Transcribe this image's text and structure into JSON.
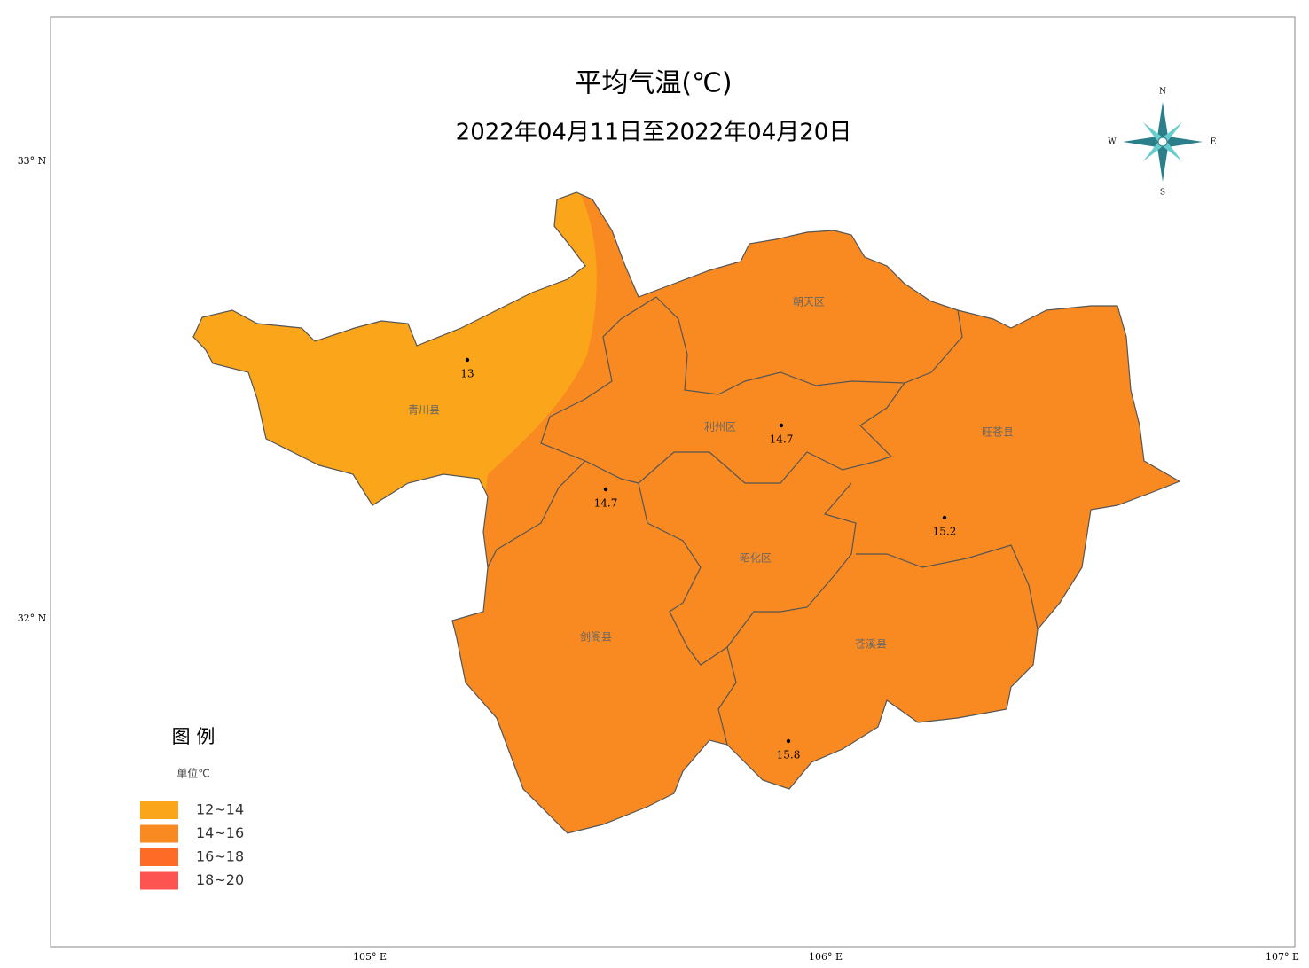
{
  "title": "平均气温(℃)",
  "subtitle": "2022年04月11日至2022年04月20日",
  "compass": {
    "n": "N",
    "s": "S",
    "w": "W",
    "e": "E"
  },
  "lat_labels": [
    "33° N",
    "32° N"
  ],
  "lon_labels": [
    "105° E",
    "106° E",
    "107° E"
  ],
  "districts": [
    "青川县",
    "朝天区",
    "利州区",
    "旺苍县",
    "昭化区",
    "剑阁县",
    "苍溪县"
  ],
  "stations": [
    13,
    14.7,
    14.7,
    15.2,
    15.8
  ],
  "legend": {
    "title": "图 例",
    "unit": "单位℃",
    "items": [
      {
        "label": "12~14",
        "color": "#fba61a"
      },
      {
        "label": "14~16",
        "color": "#f98a21"
      },
      {
        "label": "16~18",
        "color": "#fd6b26"
      },
      {
        "label": "18~20",
        "color": "#fe5451"
      }
    ]
  }
}
